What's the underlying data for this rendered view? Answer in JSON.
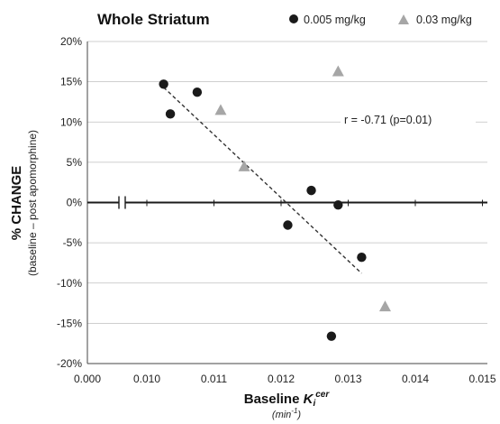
{
  "chart_data": {
    "type": "scatter",
    "title": "Whole Striatum",
    "ylabel": "% CHANGE",
    "ylabel_sub": "(baseline – post apomorphine)",
    "xlabel_prefix": "Baseline ",
    "xlabel_var": "K",
    "xlabel_sub": "i",
    "xlabel_sup": "cer",
    "xlabel_unit": "(min",
    "xlabel_unit_sup": "-1",
    "xlabel_unit_close": ")",
    "xlim": [
      0.0,
      0.015
    ],
    "ylim": [
      -20,
      20
    ],
    "x_ticks": [
      "0.000",
      "0.010",
      "0.011",
      "0.012",
      "0.013",
      "0.014",
      "0.015"
    ],
    "y_ticks": [
      "20%",
      "15%",
      "10%",
      "5%",
      "0%",
      "-5%",
      "-10%",
      "-15%",
      "-20%"
    ],
    "x_axis_break": true,
    "grid": "horizontal",
    "legend_position": "top",
    "annotation": "r = -0.71 (p=0.01)",
    "colors": {
      "series1": "#1a1a1a",
      "series2": "#a6a6a6",
      "trendline": "#333333",
      "grid": "#bfbfbf"
    },
    "series": [
      {
        "name": "0.005 mg/kg",
        "marker": "circle",
        "points": [
          {
            "x": 0.01025,
            "y": 14.7
          },
          {
            "x": 0.01035,
            "y": 11.0
          },
          {
            "x": 0.01075,
            "y": 13.7
          },
          {
            "x": 0.01245,
            "y": 1.5
          },
          {
            "x": 0.01285,
            "y": -0.3
          },
          {
            "x": 0.0121,
            "y": -2.8
          },
          {
            "x": 0.0132,
            "y": -6.8
          },
          {
            "x": 0.01275,
            "y": -16.6
          }
        ]
      },
      {
        "name": "0.03 mg/kg",
        "marker": "triangle",
        "points": [
          {
            "x": 0.01285,
            "y": 16.3
          },
          {
            "x": 0.0111,
            "y": 11.5
          },
          {
            "x": 0.01145,
            "y": 4.5
          },
          {
            "x": 0.01355,
            "y": -12.9
          }
        ]
      }
    ],
    "trendline": {
      "x": [
        0.01025,
        0.0132
      ],
      "y": [
        14.3,
        -8.8
      ]
    }
  }
}
